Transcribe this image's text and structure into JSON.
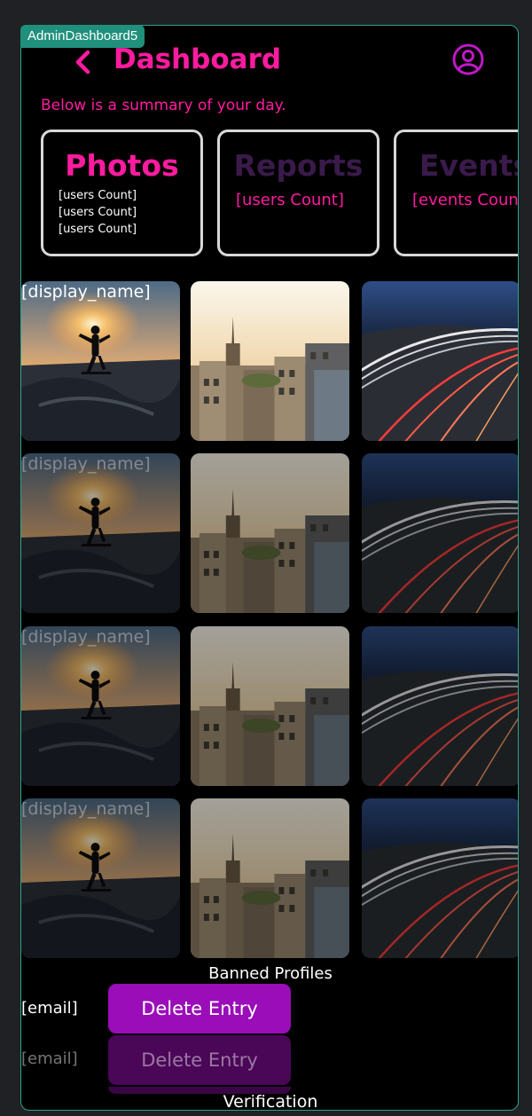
{
  "frame_tag": "AdminDashboard5",
  "header": {
    "title": "Dashboard",
    "subtitle": "Below is a summary of your day."
  },
  "stats": [
    {
      "title": "Photos",
      "lines": [
        "[users Count]",
        "[users Count]",
        "[users Count]"
      ],
      "color": "#ff1ba0"
    },
    {
      "title": "Reports",
      "lines": [
        "[users Count]"
      ],
      "color": "#3a1a4a"
    },
    {
      "title": "Events",
      "lines": [
        "[events Count]"
      ],
      "color": "#3a1a4a"
    }
  ],
  "photo_rows": [
    {
      "label": "[display_name]"
    },
    {
      "label": "[display_name]"
    },
    {
      "label": "[display_name]"
    },
    {
      "label": "[display_name]"
    }
  ],
  "banned": {
    "title": "Banned Profiles",
    "entries": [
      {
        "email": "[email]",
        "button": "Delete Entry"
      },
      {
        "email": "[email]",
        "button": "Delete Entry"
      }
    ]
  },
  "verification": {
    "title": "Verification"
  },
  "colors": {
    "accent": "#ff1ba0",
    "button": "#9a0db9",
    "frame_border": "#2aa58c"
  }
}
